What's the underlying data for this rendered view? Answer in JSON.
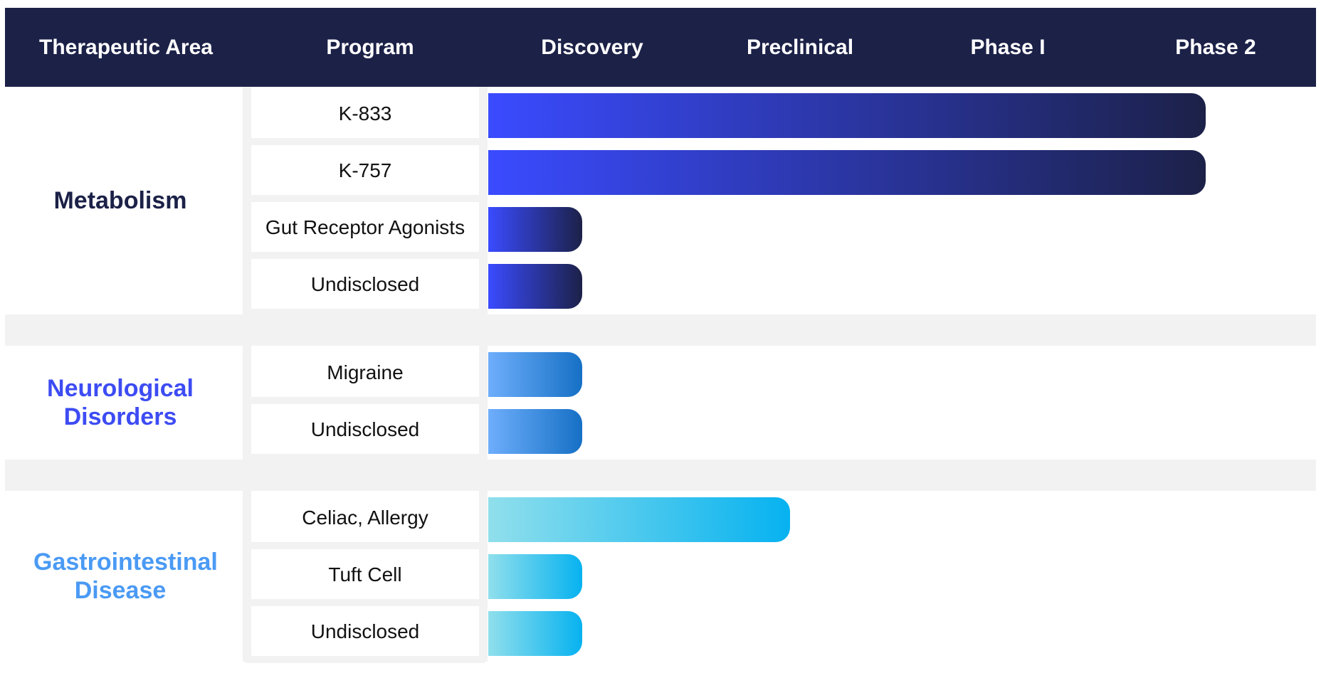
{
  "chart_data": {
    "type": "bar",
    "orientation": "horizontal",
    "title": "",
    "stages": [
      "Discovery",
      "Preclinical",
      "Phase I",
      "Phase 2"
    ],
    "columns": {
      "area": "Therapeutic Area",
      "program": "Program"
    },
    "groups": [
      {
        "area": "Metabolism",
        "color": "#1c2148",
        "gradient": [
          "#3a4bff",
          "#1c2148"
        ],
        "programs": [
          {
            "name": "K-833",
            "progress": 3.5
          },
          {
            "name": "K-757",
            "progress": 3.5
          },
          {
            "name": "Gut Receptor Agonists",
            "progress": 0.5
          },
          {
            "name": "Undisclosed",
            "progress": 0.5
          }
        ]
      },
      {
        "area": "Neurological Disorders",
        "color": "#3d4cf3",
        "gradient": [
          "#6eaefc",
          "#1670c5"
        ],
        "programs": [
          {
            "name": "Migraine",
            "progress": 0.5
          },
          {
            "name": "Undisclosed",
            "progress": 0.5
          }
        ]
      },
      {
        "area": "Gastrointestinal Disease",
        "color": "#4a9af4",
        "gradient": [
          "#90dfec",
          "#06b2f0"
        ],
        "programs": [
          {
            "name": "Celiac, Allergy",
            "progress": 1.5
          },
          {
            "name": "Tuft Cell",
            "progress": 0.5
          },
          {
            "name": "Undisclosed",
            "progress": 0.5
          }
        ]
      }
    ]
  }
}
